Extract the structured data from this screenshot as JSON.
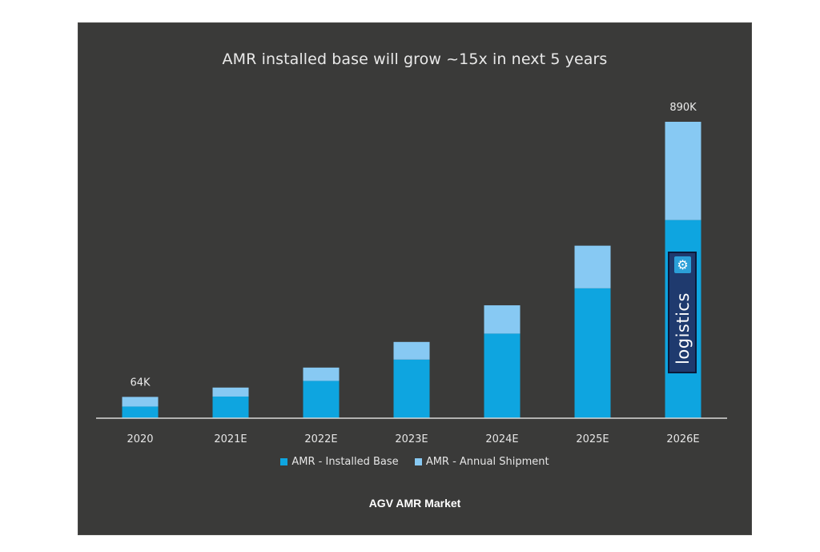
{
  "chart_data": {
    "type": "bar",
    "stacked": true,
    "title": "AMR installed base will grow ~15x in next 5 years",
    "subtitle": "AGV AMR Market",
    "categories": [
      "2020",
      "2021E",
      "2022E",
      "2023E",
      "2024E",
      "2025E",
      "2026E"
    ],
    "series": [
      {
        "name": "AMR - Installed Base",
        "color": "#0ea5e0",
        "values": [
          35,
          65,
          112,
          176,
          254,
          390,
          595
        ]
      },
      {
        "name": "AMR - Annual Shipment",
        "color": "#87c9f3",
        "values": [
          29,
          27,
          40,
          53,
          85,
          128,
          295
        ]
      }
    ],
    "data_labels": {
      "2020": "64K",
      "2026E": "890K"
    },
    "ylim": [
      0,
      890
    ],
    "grid": false,
    "legend_position": "bottom",
    "xlabel": "",
    "ylabel": ""
  },
  "watermark": {
    "text": "logistics",
    "icon": "gear-icon"
  }
}
